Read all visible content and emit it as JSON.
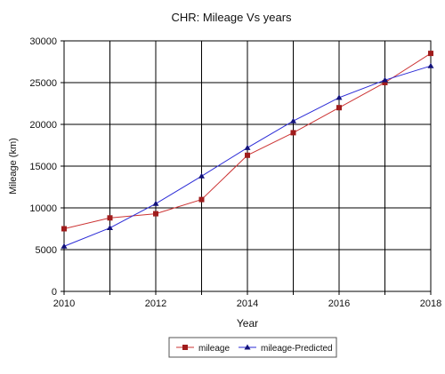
{
  "chart_data": {
    "type": "line",
    "title": "CHR: Mileage Vs years",
    "xlabel": "Year",
    "ylabel": "Mileage (km)",
    "xlim": [
      2010,
      2018
    ],
    "ylim": [
      0,
      30000
    ],
    "x_ticks": [
      "2010",
      "2012",
      "2014",
      "2016",
      "2018"
    ],
    "y_ticks": [
      "0",
      "5000",
      "10000",
      "15000",
      "20000",
      "25000",
      "30000"
    ],
    "grid": true,
    "legend_position": "bottom-center",
    "x": [
      2010,
      2011,
      2012,
      2013,
      2014,
      2015,
      2016,
      2017,
      2018
    ],
    "series": [
      {
        "name": "mileage",
        "color": "#cc3333",
        "marker": "square",
        "values": [
          7500,
          8800,
          9300,
          11000,
          16300,
          19000,
          22000,
          25000,
          28500
        ]
      },
      {
        "name": "mileage-Predicted",
        "color": "#2b2bd6",
        "marker": "triangle",
        "values": [
          5400,
          7600,
          10500,
          13800,
          17200,
          20400,
          23200,
          25300,
          27000
        ]
      }
    ]
  }
}
